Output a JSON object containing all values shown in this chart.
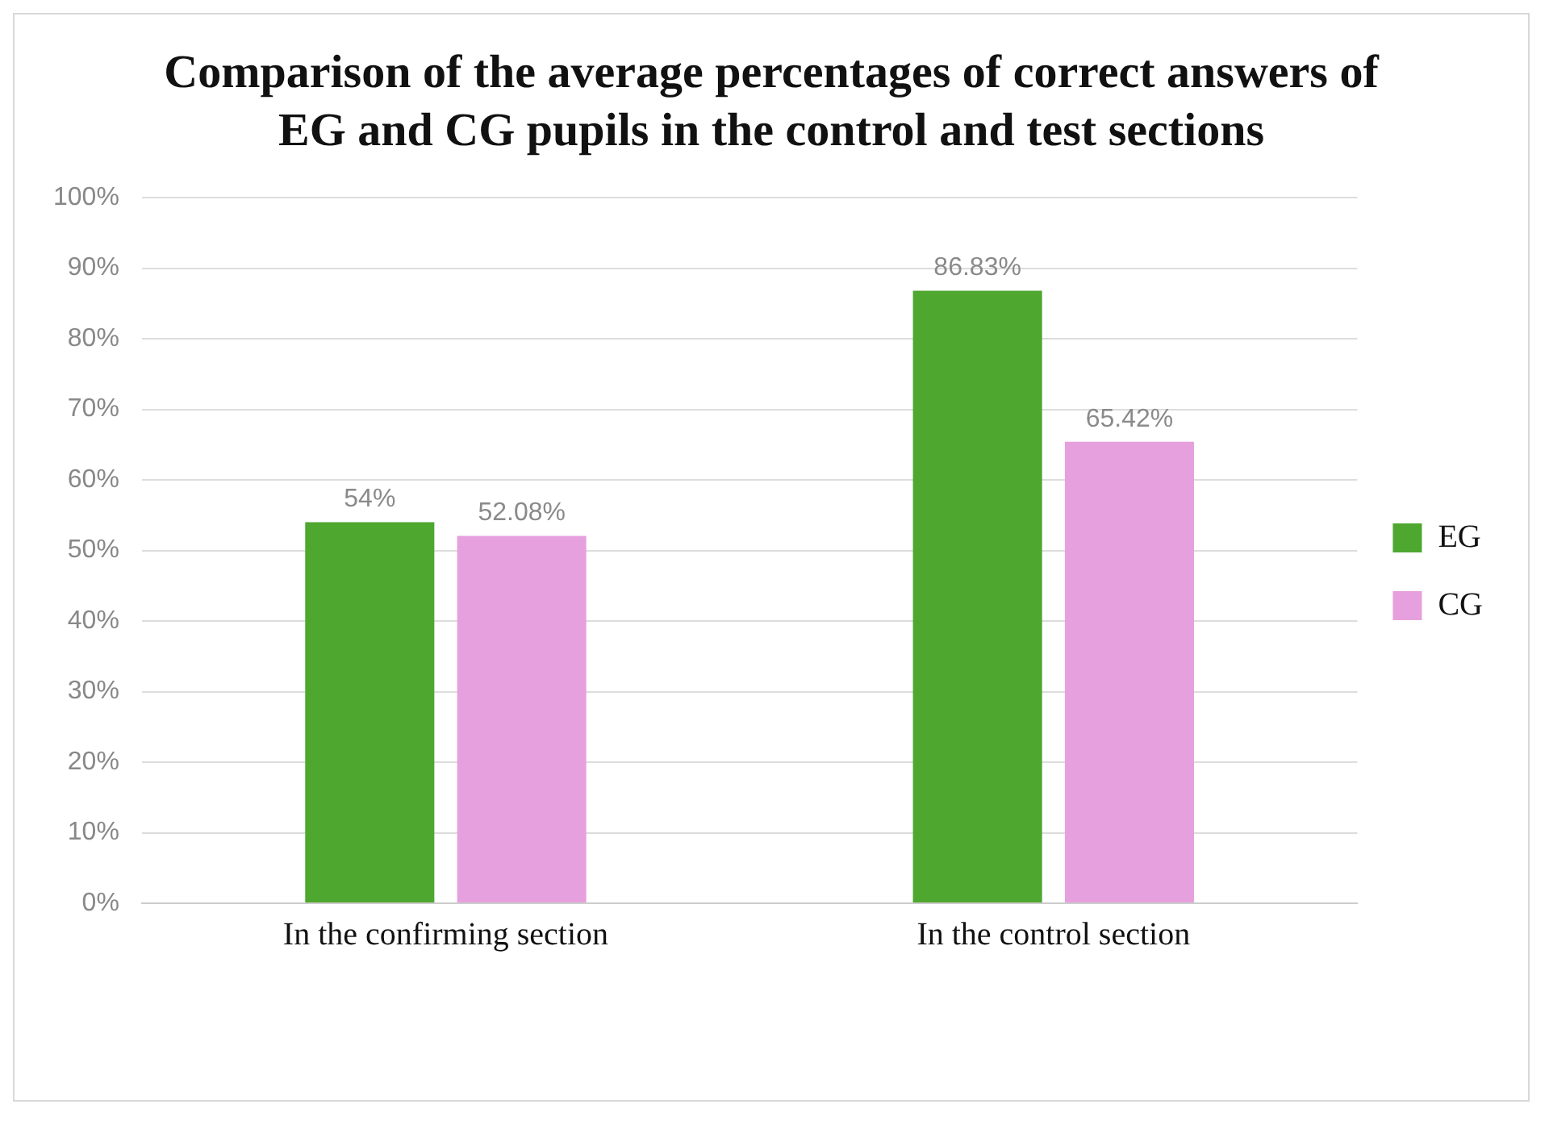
{
  "chart_data": {
    "type": "bar",
    "title": "Comparison of the average percentages of correct answers of EG and CG pupils in the control and test sections",
    "categories": [
      "In the confirming section",
      "In the control section"
    ],
    "series": [
      {
        "name": "EG",
        "color": "#4ea72e",
        "values": [
          54,
          86.83
        ],
        "value_labels": [
          "54%",
          "86.83%"
        ]
      },
      {
        "name": "CG",
        "color": "#e6a0de",
        "values": [
          52.08,
          65.42
        ],
        "value_labels": [
          "52.08%",
          "65.42%"
        ]
      }
    ],
    "ylim": [
      0,
      100
    ],
    "yticks": [
      {
        "value": 0,
        "label": "0%"
      },
      {
        "value": 10,
        "label": "10%"
      },
      {
        "value": 20,
        "label": "20%"
      },
      {
        "value": 30,
        "label": "30%"
      },
      {
        "value": 40,
        "label": "40%"
      },
      {
        "value": 50,
        "label": "50%"
      },
      {
        "value": 60,
        "label": "60%"
      },
      {
        "value": 70,
        "label": "70%"
      },
      {
        "value": 80,
        "label": "80%"
      },
      {
        "value": 90,
        "label": "90%"
      },
      {
        "value": 100,
        "label": "100%"
      }
    ],
    "grid": "y",
    "legend": "right"
  }
}
